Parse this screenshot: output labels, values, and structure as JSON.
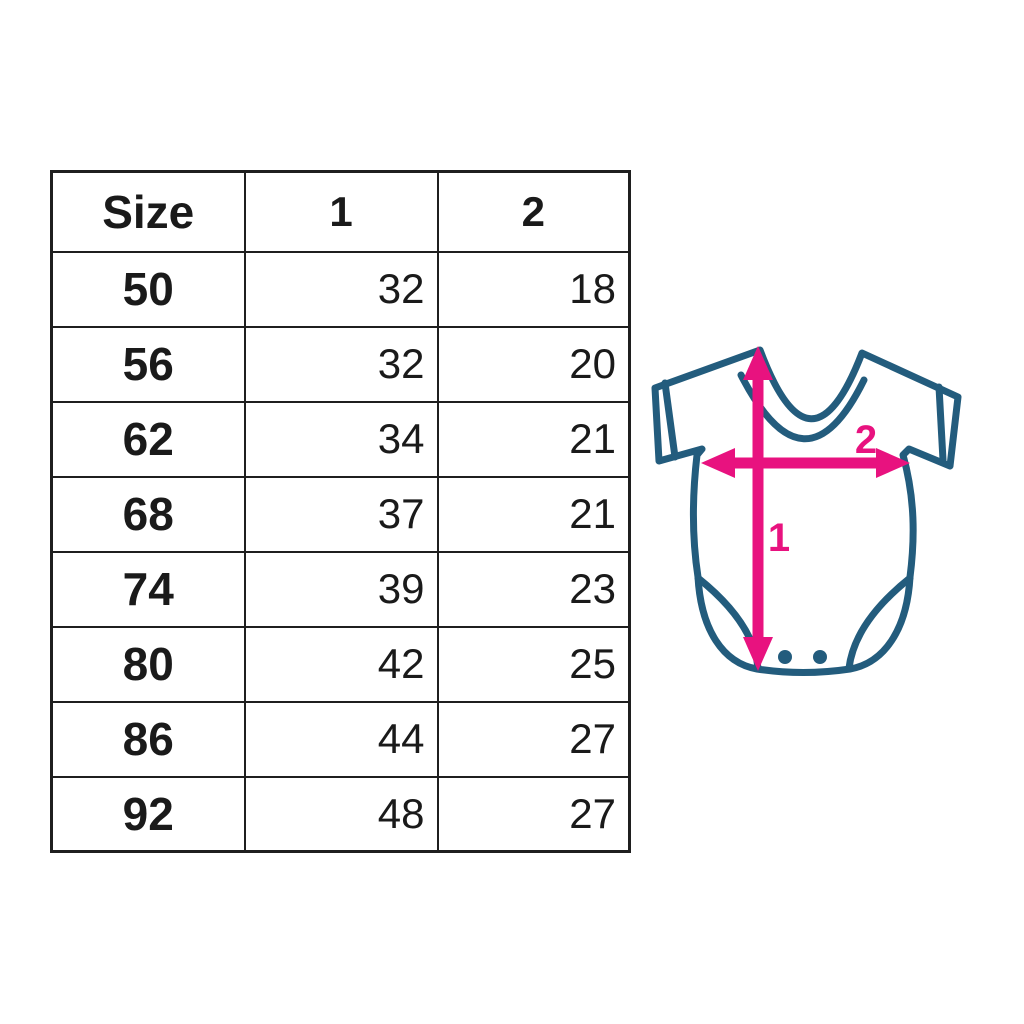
{
  "page": {
    "background": "#ffffff",
    "text_color": "#1a1a1a",
    "border_color": "#1f1f1f"
  },
  "table": {
    "columns": [
      "Size",
      "1",
      "2"
    ],
    "rows": [
      [
        "50",
        "32",
        "18"
      ],
      [
        "56",
        "32",
        "20"
      ],
      [
        "62",
        "34",
        "21"
      ],
      [
        "68",
        "37",
        "21"
      ],
      [
        "74",
        "39",
        "23"
      ],
      [
        "80",
        "42",
        "25"
      ],
      [
        "86",
        "44",
        "27"
      ],
      [
        "92",
        "48",
        "27"
      ]
    ]
  },
  "diagram": {
    "type": "baby-bodysuit-measurement-diagram",
    "outline_color": "#235c7d",
    "arrow_color": "#e8127f",
    "labels": {
      "length": "1",
      "width": "2"
    }
  },
  "chart_data": {
    "type": "table",
    "columns": [
      "Size",
      "1",
      "2"
    ],
    "rows": [
      [
        50,
        32,
        18
      ],
      [
        56,
        32,
        20
      ],
      [
        62,
        34,
        21
      ],
      [
        68,
        37,
        21
      ],
      [
        74,
        39,
        23
      ],
      [
        80,
        42,
        25
      ],
      [
        86,
        44,
        27
      ],
      [
        92,
        48,
        27
      ]
    ],
    "legend": {
      "1": "vertical measurement arrow on bodysuit diagram",
      "2": "horizontal measurement arrow on bodysuit diagram"
    }
  }
}
